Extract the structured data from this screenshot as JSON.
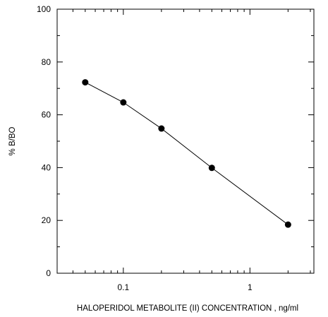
{
  "chart_data": {
    "type": "line",
    "title": "",
    "xlabel": "HALOPERIDOL METABOLITE (II) CONCENTRATION , ng/ml",
    "ylabel": "% B/BO",
    "xscale": "log",
    "xlim": [
      0.03,
      3.2
    ],
    "ylim": [
      0,
      100
    ],
    "x_ticks": [
      {
        "value": 0.1,
        "label": "0.1"
      },
      {
        "value": 1,
        "label": "1"
      }
    ],
    "y_ticks": [
      {
        "value": 0,
        "label": "0"
      },
      {
        "value": 20,
        "label": "20"
      },
      {
        "value": 40,
        "label": "40"
      },
      {
        "value": 60,
        "label": "60"
      },
      {
        "value": 80,
        "label": "80"
      },
      {
        "value": 100,
        "label": "100"
      }
    ],
    "grid": false,
    "legend": "none",
    "series": [
      {
        "x": [
          0.05,
          0.1,
          0.2,
          0.5,
          2
        ],
        "y": [
          72.3,
          64.7,
          54.8,
          39.9,
          18.4
        ],
        "color": "#000000",
        "marker": "filled-circle"
      }
    ]
  }
}
